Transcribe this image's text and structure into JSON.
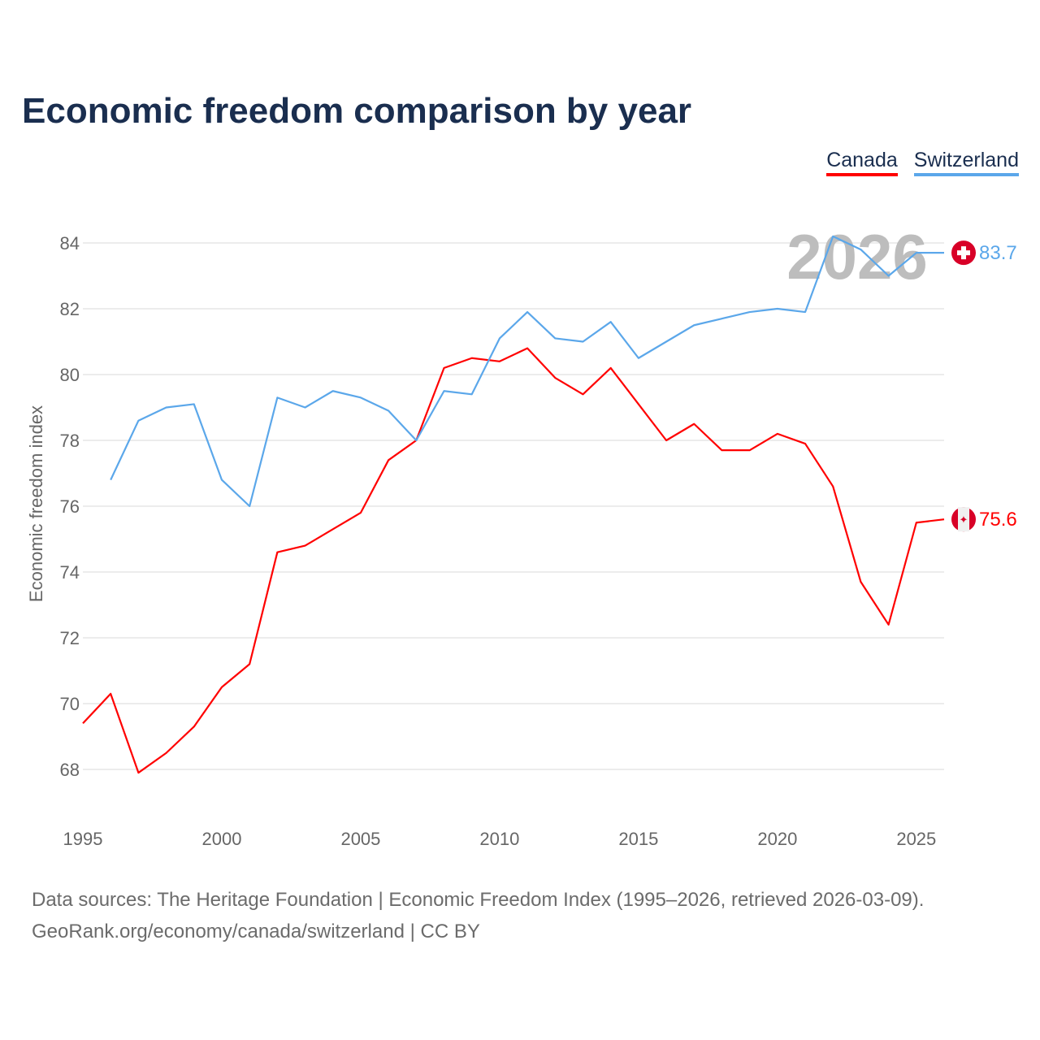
{
  "chart_data": {
    "type": "line",
    "title": "Economic freedom comparison by year",
    "ylabel": "Economic freedom index",
    "xlabel": "",
    "xlim": [
      1995,
      2026
    ],
    "ylim": [
      67,
      85
    ],
    "yticks": [
      68,
      70,
      72,
      74,
      76,
      78,
      80,
      82,
      84
    ],
    "xticks": [
      1995,
      2000,
      2005,
      2010,
      2015,
      2020,
      2025
    ],
    "grid": true,
    "legend_position": "top-right",
    "watermark_year": "2026",
    "series": [
      {
        "name": "Canada",
        "color": "#ff0000",
        "end_label": "75.6",
        "flag": "canada",
        "x": [
          1995,
          1996,
          1997,
          1998,
          1999,
          2000,
          2001,
          2002,
          2003,
          2004,
          2005,
          2006,
          2007,
          2008,
          2009,
          2010,
          2011,
          2012,
          2013,
          2014,
          2015,
          2016,
          2017,
          2018,
          2019,
          2020,
          2021,
          2022,
          2023,
          2024,
          2025,
          2026
        ],
        "values": [
          69.4,
          70.3,
          67.9,
          68.5,
          69.3,
          70.5,
          71.2,
          74.6,
          74.8,
          75.3,
          75.8,
          77.4,
          78.0,
          80.2,
          80.5,
          80.4,
          80.8,
          79.9,
          79.4,
          80.2,
          79.1,
          78.0,
          78.5,
          77.7,
          77.7,
          78.2,
          77.9,
          76.6,
          73.7,
          72.4,
          75.5,
          75.6
        ]
      },
      {
        "name": "Switzerland",
        "color": "#5ba7ea",
        "end_label": "83.7",
        "flag": "switzerland",
        "x": [
          1996,
          1997,
          1998,
          1999,
          2000,
          2001,
          2002,
          2003,
          2004,
          2005,
          2006,
          2007,
          2008,
          2009,
          2010,
          2011,
          2012,
          2013,
          2014,
          2015,
          2016,
          2017,
          2018,
          2019,
          2020,
          2021,
          2022,
          2023,
          2024,
          2025,
          2026
        ],
        "values": [
          76.8,
          78.6,
          79.0,
          79.1,
          76.8,
          76.0,
          79.3,
          79.0,
          79.5,
          79.3,
          78.9,
          78.0,
          79.5,
          79.4,
          81.1,
          81.9,
          81.1,
          81.0,
          81.6,
          80.5,
          81.0,
          81.5,
          81.7,
          81.9,
          82.0,
          81.9,
          84.2,
          83.8,
          83.0,
          83.7,
          83.7
        ]
      }
    ]
  },
  "footer": {
    "source": "Data sources: The Heritage Foundation | Economic Freedom Index (1995–2026, retrieved 2026-03-09).",
    "link": "GeoRank.org/economy/canada/switzerland | CC BY"
  }
}
